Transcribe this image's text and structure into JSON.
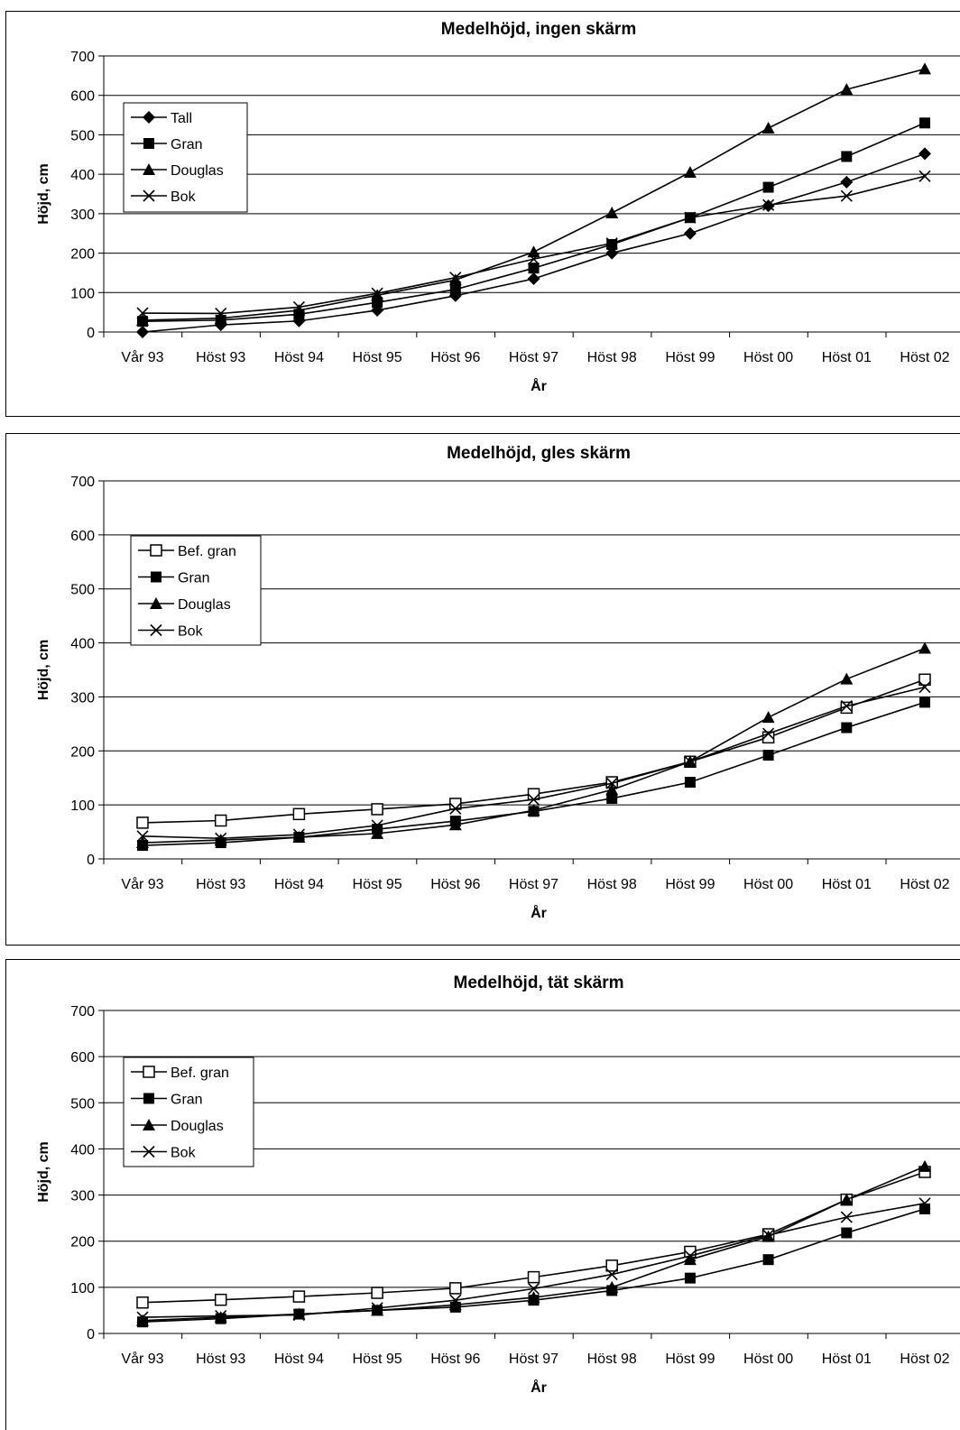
{
  "chart_data": [
    {
      "type": "line",
      "title": "Medelhöjd, ingen skärm",
      "xlabel": "År",
      "ylabel": "Höjd, cm",
      "ylim": [
        0,
        700
      ],
      "yticks": [
        "0",
        "100",
        "200",
        "300",
        "400",
        "500",
        "600",
        "700"
      ],
      "grid": "horizontal",
      "legend_position": "top-left",
      "categories": [
        "Vår 93",
        "Höst 93",
        "Höst 94",
        "Höst 95",
        "Höst 96",
        "Höst 97",
        "Höst 98",
        "Höst 99",
        "Höst 00",
        "Höst 01",
        "Höst 02"
      ],
      "series": [
        {
          "name": "Tall",
          "marker": "diamond",
          "values": [
            0,
            18,
            28,
            55,
            92,
            135,
            200,
            250,
            320,
            380,
            452
          ]
        },
        {
          "name": "Gran",
          "marker": "square",
          "values": [
            27,
            30,
            45,
            75,
            108,
            162,
            222,
            290,
            367,
            445,
            530
          ]
        },
        {
          "name": "Douglas",
          "marker": "triangle",
          "values": [
            30,
            35,
            55,
            93,
            132,
            203,
            302,
            405,
            517,
            615,
            667
          ]
        },
        {
          "name": "Bok",
          "marker": "x",
          "values": [
            48,
            47,
            63,
            98,
            138,
            185,
            225,
            290,
            322,
            345,
            395
          ]
        }
      ]
    },
    {
      "type": "line",
      "title": "Medelhöjd, gles skärm",
      "xlabel": "År",
      "ylabel": "Höjd, cm",
      "ylim": [
        0,
        700
      ],
      "yticks": [
        "0",
        "100",
        "200",
        "300",
        "400",
        "500",
        "600",
        "700"
      ],
      "grid": "horizontal",
      "legend_position": "top-left",
      "categories": [
        "Vår 93",
        "Höst 93",
        "Höst 94",
        "Höst 95",
        "Höst 96",
        "Höst 97",
        "Höst 98",
        "Höst 99",
        "Höst 00",
        "Höst 01",
        "Höst 02"
      ],
      "series": [
        {
          "name": "Bef. gran",
          "marker": "square-open",
          "values": [
            67,
            71,
            83,
            92,
            102,
            120,
            142,
            180,
            225,
            280,
            332
          ]
        },
        {
          "name": "Gran",
          "marker": "square",
          "values": [
            25,
            30,
            40,
            55,
            70,
            88,
            112,
            142,
            192,
            243,
            290
          ]
        },
        {
          "name": "Douglas",
          "marker": "triangle",
          "values": [
            30,
            35,
            40,
            47,
            63,
            90,
            128,
            180,
            262,
            333,
            390
          ]
        },
        {
          "name": "Bok",
          "marker": "x",
          "values": [
            42,
            38,
            45,
            62,
            93,
            110,
            140,
            180,
            232,
            283,
            318
          ]
        }
      ]
    },
    {
      "type": "line",
      "title": "Medelhöjd, tät skärm",
      "xlabel": "År",
      "ylabel": "Höjd, cm",
      "ylim": [
        0,
        700
      ],
      "yticks": [
        "0",
        "100",
        "200",
        "300",
        "400",
        "500",
        "600",
        "700"
      ],
      "grid": "horizontal",
      "legend_position": "top-left",
      "categories": [
        "Vår 93",
        "Höst 93",
        "Höst 94",
        "Höst 95",
        "Höst 96",
        "Höst 97",
        "Höst 98",
        "Höst 99",
        "Höst 00",
        "Höst 01",
        "Höst 02"
      ],
      "series": [
        {
          "name": "Bef. gran",
          "marker": "square-open",
          "values": [
            67,
            73,
            80,
            88,
            98,
            122,
            147,
            177,
            215,
            290,
            350
          ]
        },
        {
          "name": "Gran",
          "marker": "square",
          "values": [
            25,
            32,
            42,
            50,
            57,
            72,
            93,
            120,
            160,
            218,
            270
          ]
        },
        {
          "name": "Douglas",
          "marker": "triangle",
          "values": [
            28,
            35,
            42,
            50,
            62,
            78,
            100,
            160,
            210,
            290,
            362
          ]
        },
        {
          "name": "Bok",
          "marker": "x",
          "values": [
            35,
            38,
            40,
            55,
            72,
            97,
            128,
            168,
            213,
            252,
            282
          ]
        }
      ]
    }
  ]
}
